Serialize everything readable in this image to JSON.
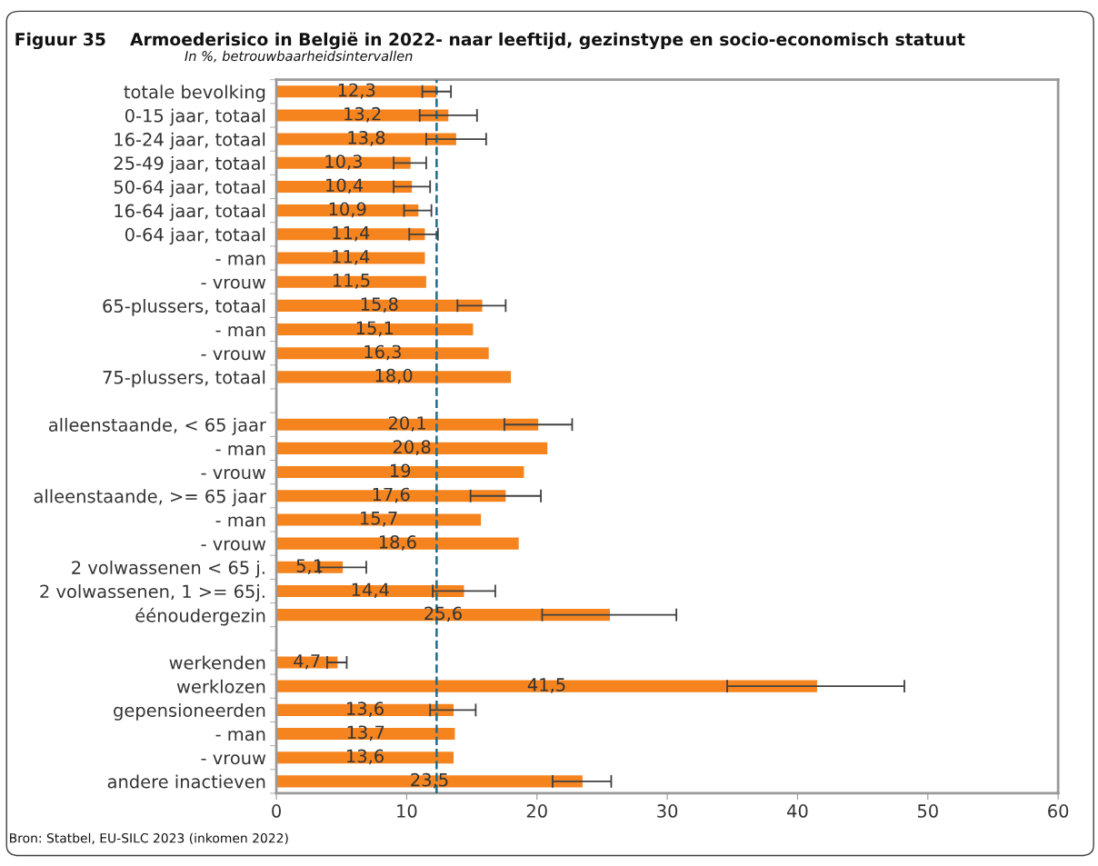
{
  "chart_data": {
    "type": "bar",
    "orientation": "horizontal",
    "title": "Figuur 35    Armoederisico in België in 2022- naar leeftijd, gezinstype en socio-economisch statuut",
    "subtitle": "In %, betrouwbaarheidsintervallen",
    "annotations": [
      "Bron: Statbel, EU-SILC 2023 (inkomen 2022)"
    ],
    "categories": [
      "totale bevolking",
      "0-15 jaar, totaal",
      "16-24 jaar, totaal",
      "25-49 jaar, totaal",
      "50-64 jaar, totaal",
      "16-64 jaar, totaal",
      "0-64 jaar, totaal",
      "- man",
      "- vrouw",
      "65-plussers, totaal",
      "- man",
      "- vrouw",
      "75-plussers, totaal",
      null,
      "alleenstaande, < 65 jaar",
      "- man",
      "- vrouw",
      "alleenstaande, >= 65 jaar",
      "- man",
      "- vrouw",
      "2 volwassenen < 65 j.",
      "2 volwassenen, 1 >= 65j.",
      "éénoudergezin",
      null,
      "werkenden",
      "werklozen",
      "gepensioneerden",
      "- man",
      "- vrouw",
      "andere inactieven"
    ],
    "values": [
      12.3,
      13.2,
      13.8,
      10.3,
      10.4,
      10.9,
      11.4,
      11.4,
      11.5,
      15.8,
      15.1,
      16.3,
      18.0,
      null,
      20.1,
      20.8,
      19,
      17.6,
      15.7,
      18.6,
      5.1,
      14.4,
      25.6,
      null,
      4.7,
      41.5,
      13.6,
      13.7,
      13.6,
      23.5
    ],
    "value_labels": [
      "12,3",
      "13,2",
      "13,8",
      "10,3",
      "10,4",
      "10,9",
      "11,4",
      "11,4",
      "11,5",
      "15,8",
      "15,1",
      "16,3",
      "18,0",
      null,
      "20,1",
      "20,8",
      "19",
      "17,6",
      "15,7",
      "18,6",
      "5,1",
      "14,4",
      "25,6",
      null,
      "4,7",
      "41,5",
      "13,6",
      "13,7",
      "13,6",
      "23,5"
    ],
    "errors": [
      [
        11.2,
        13.4
      ],
      [
        11.0,
        15.4
      ],
      [
        11.5,
        16.1
      ],
      [
        9.0,
        11.5
      ],
      [
        9.0,
        11.8
      ],
      [
        9.8,
        11.9
      ],
      [
        10.2,
        12.4
      ],
      null,
      null,
      [
        13.9,
        17.6
      ],
      null,
      null,
      null,
      null,
      [
        17.5,
        22.7
      ],
      null,
      null,
      [
        14.9,
        20.3
      ],
      null,
      null,
      [
        3.3,
        6.9
      ],
      [
        12.0,
        16.8
      ],
      [
        20.4,
        30.7
      ],
      null,
      [
        3.9,
        5.4
      ],
      [
        34.6,
        48.2
      ],
      [
        11.8,
        15.3
      ],
      null,
      null,
      [
        21.2,
        25.7
      ]
    ],
    "color": "#f5841f",
    "xlim": [
      0,
      60
    ],
    "xticks": [
      0,
      10,
      20,
      30,
      40,
      50,
      60
    ],
    "ref_lines": [
      {
        "axis": "x",
        "value": 12.3,
        "color": "#1f6b8a",
        "line_style": "dashed"
      }
    ],
    "grid": false,
    "legend": false
  }
}
